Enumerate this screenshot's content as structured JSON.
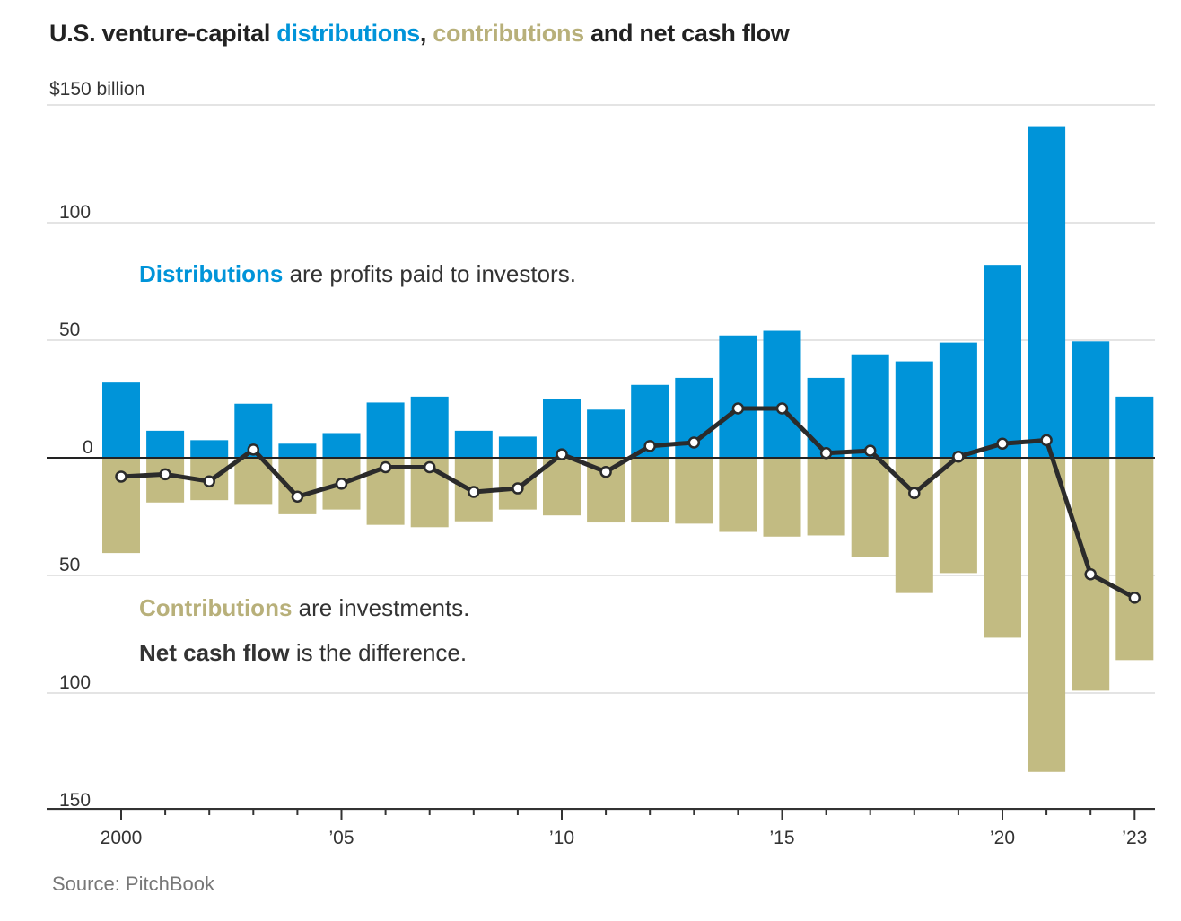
{
  "title": {
    "prefix": "U.S. venture-capital ",
    "distributions": "distributions",
    "sep": ", ",
    "contributions": "contributions",
    "suffix": " and net cash flow"
  },
  "annotations": {
    "dist_key": "Distributions",
    "dist_rest": " are profits paid to investors.",
    "contr_key": "Contributions",
    "contr_rest": " are investments.",
    "net_key": "Net cash flow",
    "net_rest": " is the difference."
  },
  "source": "Source: PitchBook",
  "colors": {
    "distributions": "#0094d9",
    "contributions": "#c2bb82",
    "net": "#2b2b2b"
  },
  "chart_data": {
    "type": "bar",
    "unit_label": "$150 billion",
    "ylim": [
      -150,
      150
    ],
    "y_ticks": [
      {
        "value": 150,
        "label": "$150 billion"
      },
      {
        "value": 100,
        "label": "100"
      },
      {
        "value": 50,
        "label": "50"
      },
      {
        "value": 0,
        "label": "0"
      },
      {
        "value": -50,
        "label": "50"
      },
      {
        "value": -100,
        "label": "100"
      },
      {
        "value": -150,
        "label": "150"
      }
    ],
    "x_tick_labels": [
      {
        "year": 2000,
        "label": "2000"
      },
      {
        "year": 2005,
        "label": "’05"
      },
      {
        "year": 2010,
        "label": "’10"
      },
      {
        "year": 2015,
        "label": "’15"
      },
      {
        "year": 2020,
        "label": "’20"
      },
      {
        "year": 2023,
        "label": "’23"
      }
    ],
    "years": [
      2000,
      2001,
      2002,
      2003,
      2004,
      2005,
      2006,
      2007,
      2008,
      2009,
      2010,
      2011,
      2012,
      2013,
      2014,
      2015,
      2016,
      2017,
      2018,
      2019,
      2020,
      2021,
      2022,
      2023
    ],
    "series": [
      {
        "name": "Distributions",
        "type": "bar",
        "values": [
          32,
          11.5,
          7.5,
          23,
          6,
          10.5,
          23.5,
          26,
          11.5,
          9,
          25,
          20.5,
          31,
          34,
          52,
          54,
          34,
          44,
          41,
          49,
          82,
          141,
          49.5,
          26
        ]
      },
      {
        "name": "Contributions",
        "type": "bar",
        "values": [
          -40.5,
          -19,
          -18,
          -20,
          -24,
          -22,
          -28.5,
          -29.5,
          -27,
          -22,
          -24.5,
          -27.5,
          -27.5,
          -28,
          -31.5,
          -33.5,
          -33,
          -42,
          -57.5,
          -49,
          -76.5,
          -133.5,
          -99,
          -86
        ]
      },
      {
        "name": "Net cash flow",
        "type": "line",
        "values": [
          -8,
          -7,
          -10,
          3.5,
          -16.5,
          -11,
          -4,
          -4,
          -14.5,
          -13,
          1.5,
          -6,
          5,
          6.5,
          21,
          21,
          2,
          3,
          -15,
          0.5,
          6,
          7.5,
          -49.5,
          -59.5
        ]
      }
    ],
    "grid": true
  }
}
